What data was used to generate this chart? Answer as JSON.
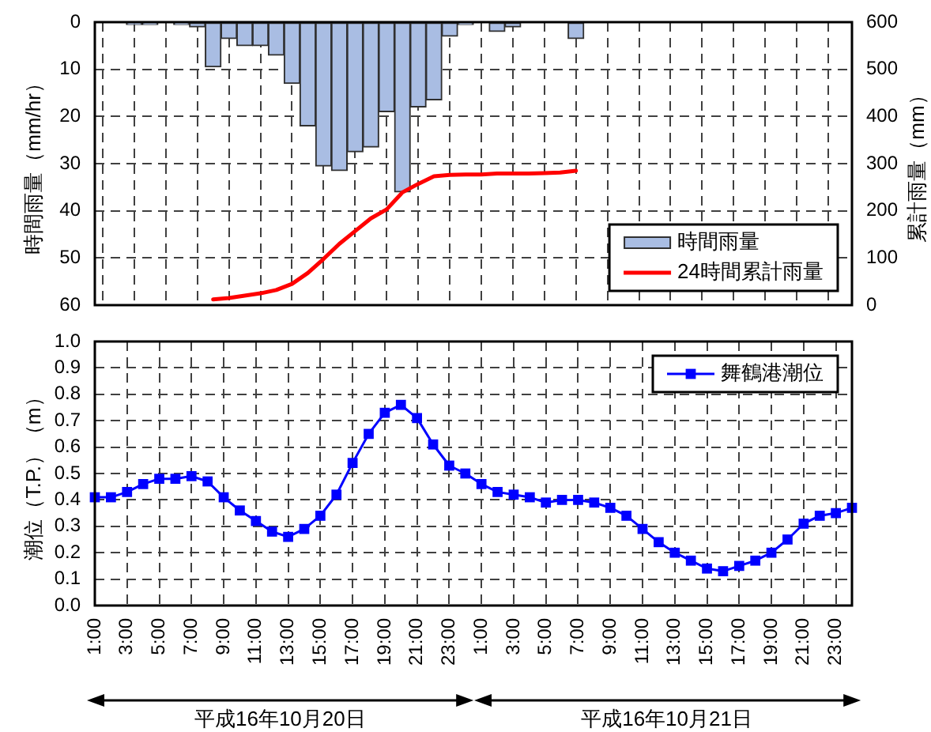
{
  "chart_data": [
    {
      "type": "bar",
      "ylabel": "時間雨量（mm/hr）",
      "y2label": "累計雨量（mm）",
      "categories": [
        null,
        null,
        null,
        null,
        null,
        null,
        null,
        null,
        null,
        null,
        null,
        null,
        null,
        null,
        null,
        null,
        null,
        null,
        null,
        null,
        null,
        null,
        null,
        null,
        null,
        null,
        null,
        null,
        null,
        null,
        null,
        null,
        null,
        null,
        null,
        null,
        null,
        null,
        null,
        null,
        null,
        null,
        null,
        null,
        null,
        null,
        null,
        null
      ],
      "series": [
        {
          "name": "時間雨量",
          "color": "#a9bde3",
          "values": [
            0,
            0,
            0.5,
            0.5,
            0,
            0.5,
            1,
            9.5,
            3.5,
            5,
            5,
            7,
            13,
            22,
            30.5,
            31.5,
            27.5,
            26.5,
            19,
            36,
            18,
            16.5,
            3,
            0.5,
            0,
            2,
            1,
            0,
            0,
            0,
            3.5,
            0,
            0,
            0,
            0,
            0,
            0,
            0,
            0,
            0,
            0,
            0,
            0,
            0,
            0,
            0,
            0,
            0
          ]
        },
        {
          "name": "24時間累計雨量",
          "type": "line",
          "axis": "y2",
          "color": "#ff0000",
          "values": [
            null,
            null,
            null,
            null,
            null,
            null,
            null,
            12,
            15,
            20,
            25,
            32,
            45,
            68,
            98,
            130,
            157,
            184,
            203,
            239,
            257,
            273,
            276,
            277,
            277,
            279,
            279,
            279,
            280,
            281,
            285,
            null,
            null,
            null,
            null,
            null,
            null,
            null,
            null,
            null,
            null,
            null,
            null,
            null,
            null,
            null,
            null,
            null
          ]
        }
      ],
      "ylim": [
        60,
        0
      ],
      "yticks": [
        0,
        10,
        20,
        30,
        40,
        50,
        60
      ],
      "y2lim": [
        0,
        600
      ],
      "y2ticks": [
        0,
        100,
        200,
        300,
        400,
        500,
        600
      ],
      "grid": true,
      "legend": "bottom right",
      "tick_labels": "y"
    },
    {
      "type": "line",
      "ylabel": "潮位（T.P.）（m）",
      "categories": [
        "1:00",
        null,
        "3:00",
        null,
        "5:00",
        null,
        "7:00",
        null,
        "9:00",
        null,
        "11:00",
        null,
        "13:00",
        null,
        "15:00",
        null,
        "17:00",
        null,
        "19:00",
        null,
        "21:00",
        null,
        "23:00",
        null,
        "1:00",
        null,
        "3:00",
        null,
        "5:00",
        null,
        "7:00",
        null,
        "9:00",
        null,
        "11:00",
        null,
        "13:00",
        null,
        "15:00",
        null,
        "17:00",
        null,
        "19:00",
        null,
        "21:00",
        null,
        "23:00",
        null
      ],
      "series": [
        {
          "name": "舞鶴港潮位",
          "color": "#0000ff",
          "values": [
            0.41,
            0.41,
            0.43,
            0.46,
            0.48,
            0.48,
            0.49,
            0.47,
            0.41,
            0.36,
            0.32,
            0.28,
            0.26,
            0.29,
            0.34,
            0.42,
            0.54,
            0.65,
            0.73,
            0.76,
            0.71,
            0.61,
            0.53,
            0.5,
            0.46,
            0.43,
            0.42,
            0.41,
            0.39,
            0.4,
            0.4,
            0.39,
            0.37,
            0.34,
            0.29,
            0.24,
            0.2,
            0.17,
            0.14,
            0.13,
            0.15,
            0.17,
            0.2,
            0.25,
            0.31,
            0.34,
            0.35,
            0.37
          ]
        }
      ],
      "ylim": [
        0,
        1
      ],
      "yticks": [
        {
          "value": 0,
          "label": "0.0"
        },
        0.1,
        0.2,
        0.3,
        0.4,
        0.5,
        0.6,
        0.7,
        0.8,
        0.9,
        {
          "value": 1,
          "label": "1.0"
        }
      ],
      "grid": true,
      "legend": "top right",
      "marker": "square",
      "annotations": [
        "平成16年10月20日",
        "平成16年10月21日"
      ]
    }
  ]
}
